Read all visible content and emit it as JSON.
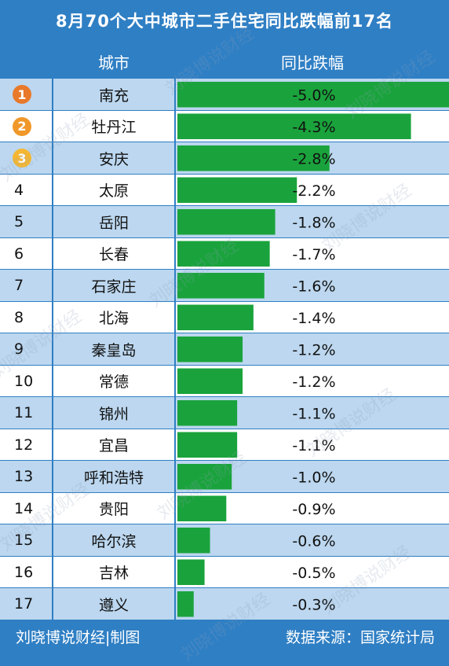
{
  "title": "8月70个大中城市二手住宅同比跌幅前17名",
  "header": {
    "city": "城市",
    "value": "同比跌幅"
  },
  "footer": {
    "left": "刘晓博说财经|制图",
    "right": "数据来源：国家统计局"
  },
  "watermark": "刘晓博说财经",
  "colors": {
    "bar": "#1aa33c",
    "header_bg": "#2f7fc4",
    "row_alt": "#bcd7ef",
    "medal_1": "#e8792a",
    "medal_2": "#f0982a",
    "medal_3": "#f5b731"
  },
  "chart_data": {
    "type": "bar",
    "title": "8月70个大中城市二手住宅同比跌幅前17名",
    "categories": [
      "南充",
      "牡丹江",
      "安庆",
      "太原",
      "岳阳",
      "长春",
      "石家庄",
      "北海",
      "秦皇岛",
      "常德",
      "锦州",
      "宜昌",
      "呼和浩特",
      "贵阳",
      "哈尔滨",
      "吉林",
      "遵义"
    ],
    "ranks": [
      "1",
      "2",
      "3",
      "4",
      "5",
      "6",
      "7",
      "8",
      "9",
      "10",
      "11",
      "12",
      "13",
      "14",
      "15",
      "16",
      "17"
    ],
    "values": [
      -5.0,
      -4.3,
      -2.8,
      -2.2,
      -1.8,
      -1.7,
      -1.6,
      -1.4,
      -1.2,
      -1.2,
      -1.1,
      -1.1,
      -1.0,
      -0.9,
      -0.6,
      -0.5,
      -0.3
    ],
    "value_labels": [
      "-5.0%",
      "-4.3%",
      "-2.8%",
      "-2.2%",
      "-1.8%",
      "-1.7%",
      "-1.6%",
      "-1.4%",
      "-1.2%",
      "-1.2%",
      "-1.1%",
      "-1.1%",
      "-1.0%",
      "-0.9%",
      "-0.6%",
      "-0.5%",
      "-0.3%"
    ],
    "xlim": [
      0,
      5.0
    ]
  }
}
